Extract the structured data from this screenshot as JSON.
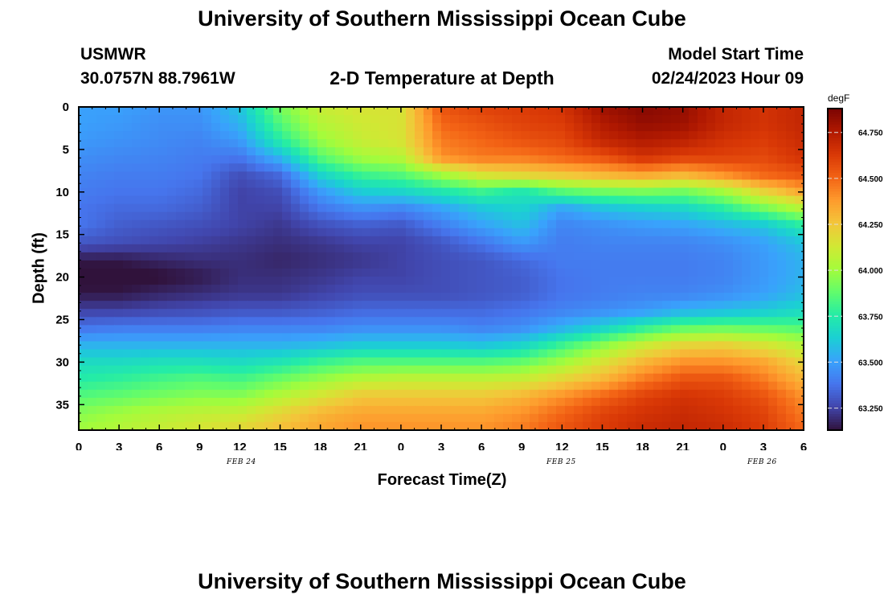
{
  "page": {
    "title": "University of Southern Mississippi Ocean Cube",
    "title_repeat": "University of Southern Mississippi Ocean Cube"
  },
  "station": {
    "id": "USMWR",
    "coords": "30.0757N  88.7961W"
  },
  "model": {
    "label": "Model Start Time",
    "start": "02/24/2023 Hour 09"
  },
  "chart_data": {
    "type": "heatmap",
    "title": "2-D Temperature at Depth",
    "xlabel": "Forecast Time(Z)",
    "ylabel": "Depth (ft)",
    "x_tick_labels": [
      "0",
      "3",
      "6",
      "9",
      "12",
      "15",
      "18",
      "21",
      "0",
      "3",
      "6",
      "9",
      "12",
      "15",
      "18",
      "21",
      "0",
      "3",
      "6"
    ],
    "x_months": [
      "FEB 24",
      "FEB 25",
      "FEB 26"
    ],
    "y_ticks": [
      0,
      5,
      10,
      15,
      20,
      25,
      30,
      35
    ],
    "ylim": [
      38,
      0
    ],
    "x_hours": [
      0,
      3,
      6,
      9,
      12,
      15,
      18,
      21,
      24,
      27,
      30,
      33,
      36,
      39,
      42,
      45,
      48,
      51,
      54
    ],
    "depths_ft": [
      0,
      2,
      4,
      6,
      8,
      10,
      12,
      14,
      16,
      18,
      20,
      22,
      24,
      26,
      28,
      30,
      32,
      34,
      36,
      38
    ],
    "temperature_degF": [
      [
        63.5,
        63.5,
        63.47,
        63.47,
        63.6,
        63.92,
        64.1,
        64.15,
        64.15,
        64.55,
        64.6,
        64.62,
        64.65,
        64.8,
        64.85,
        64.82,
        64.7,
        64.65,
        64.7
      ],
      [
        63.5,
        63.48,
        63.45,
        63.45,
        63.55,
        63.85,
        64.05,
        64.12,
        64.15,
        64.5,
        64.55,
        64.6,
        64.62,
        64.75,
        64.82,
        64.8,
        64.7,
        64.65,
        64.7
      ],
      [
        63.48,
        63.46,
        63.44,
        63.42,
        63.48,
        63.75,
        63.98,
        64.1,
        64.15,
        64.45,
        64.5,
        64.55,
        64.58,
        64.7,
        64.75,
        64.72,
        64.65,
        64.62,
        64.68
      ],
      [
        63.45,
        63.43,
        63.42,
        63.4,
        63.38,
        63.55,
        63.85,
        64.0,
        64.05,
        64.4,
        64.45,
        64.45,
        64.5,
        64.55,
        64.65,
        64.6,
        64.6,
        64.58,
        64.65
      ],
      [
        63.42,
        63.4,
        63.4,
        63.38,
        63.28,
        63.35,
        63.65,
        63.8,
        63.85,
        64.0,
        64.15,
        64.2,
        64.25,
        64.3,
        64.35,
        64.3,
        64.4,
        64.5,
        64.55
      ],
      [
        63.4,
        63.38,
        63.38,
        63.35,
        63.25,
        63.28,
        63.48,
        63.62,
        63.65,
        63.72,
        63.8,
        63.72,
        63.85,
        63.9,
        63.92,
        63.9,
        64.0,
        64.2,
        64.35
      ],
      [
        63.38,
        63.35,
        63.35,
        63.32,
        63.25,
        63.25,
        63.38,
        63.45,
        63.42,
        63.5,
        63.6,
        63.65,
        63.5,
        63.58,
        63.62,
        63.65,
        63.75,
        63.9,
        64.05
      ],
      [
        63.38,
        63.32,
        63.3,
        63.28,
        63.25,
        63.22,
        63.28,
        63.32,
        63.3,
        63.4,
        63.5,
        63.58,
        63.42,
        63.45,
        63.48,
        63.5,
        63.55,
        63.6,
        63.75
      ],
      [
        63.3,
        63.28,
        63.26,
        63.24,
        63.22,
        63.2,
        63.22,
        63.25,
        63.25,
        63.3,
        63.38,
        63.48,
        63.4,
        63.42,
        63.42,
        63.42,
        63.45,
        63.5,
        63.6
      ],
      [
        63.15,
        63.15,
        63.18,
        63.2,
        63.2,
        63.18,
        63.2,
        63.22,
        63.25,
        63.28,
        63.3,
        63.35,
        63.4,
        63.4,
        63.4,
        63.4,
        63.42,
        63.48,
        63.55
      ],
      [
        63.1,
        63.1,
        63.12,
        63.15,
        63.2,
        63.2,
        63.22,
        63.25,
        63.25,
        63.28,
        63.3,
        63.32,
        63.38,
        63.4,
        63.4,
        63.4,
        63.42,
        63.48,
        63.55
      ],
      [
        63.15,
        63.15,
        63.18,
        63.2,
        63.22,
        63.22,
        63.25,
        63.28,
        63.28,
        63.28,
        63.3,
        63.32,
        63.38,
        63.4,
        63.42,
        63.42,
        63.45,
        63.5,
        63.58
      ],
      [
        63.25,
        63.25,
        63.27,
        63.28,
        63.3,
        63.3,
        63.32,
        63.35,
        63.35,
        63.35,
        63.35,
        63.38,
        63.42,
        63.45,
        63.48,
        63.55,
        63.58,
        63.62,
        63.68
      ],
      [
        63.38,
        63.4,
        63.4,
        63.4,
        63.42,
        63.42,
        63.42,
        63.45,
        63.45,
        63.45,
        63.42,
        63.45,
        63.55,
        63.65,
        63.78,
        63.88,
        63.9,
        63.88,
        63.85
      ],
      [
        63.55,
        63.55,
        63.55,
        63.55,
        63.55,
        63.55,
        63.58,
        63.62,
        63.62,
        63.62,
        63.6,
        63.65,
        63.8,
        63.95,
        64.1,
        64.2,
        64.22,
        64.15,
        64.05
      ],
      [
        63.68,
        63.68,
        63.7,
        63.7,
        63.68,
        63.72,
        63.8,
        63.85,
        63.85,
        63.85,
        63.85,
        63.88,
        64.0,
        64.15,
        64.3,
        64.4,
        64.4,
        64.35,
        64.2
      ],
      [
        63.75,
        63.78,
        63.82,
        63.85,
        63.82,
        63.9,
        63.98,
        64.05,
        64.08,
        64.08,
        64.08,
        64.1,
        64.2,
        64.3,
        64.45,
        64.55,
        64.55,
        64.45,
        64.3
      ],
      [
        63.85,
        63.88,
        63.92,
        63.95,
        63.95,
        64.05,
        64.15,
        64.25,
        64.25,
        64.25,
        64.25,
        64.3,
        64.4,
        64.5,
        64.6,
        64.65,
        64.62,
        64.55,
        64.4
      ],
      [
        63.95,
        64.0,
        64.05,
        64.08,
        64.1,
        64.2,
        64.3,
        64.35,
        64.35,
        64.35,
        64.35,
        64.4,
        64.5,
        64.6,
        64.65,
        64.68,
        64.65,
        64.6,
        64.45
      ],
      [
        64.0,
        64.05,
        64.1,
        64.15,
        64.2,
        64.28,
        64.35,
        64.4,
        64.4,
        64.4,
        64.4,
        64.45,
        64.55,
        64.62,
        64.68,
        64.7,
        64.68,
        64.62,
        64.5
      ]
    ],
    "colorbar": {
      "unit": "degF",
      "ticks": [
        "63.250",
        "63.500",
        "63.750",
        "64.000",
        "64.250",
        "64.500",
        "64.750"
      ],
      "range": [
        63.13,
        64.88
      ]
    },
    "colormap": [
      "#30123b",
      "#4145ab",
      "#4675ed",
      "#39a2fc",
      "#1bcfd4",
      "#24eca6",
      "#61fc6c",
      "#a4fc3b",
      "#d1e834",
      "#f3c63a",
      "#fe9b2d",
      "#f36315",
      "#d93806",
      "#b11901",
      "#7a0402"
    ]
  }
}
